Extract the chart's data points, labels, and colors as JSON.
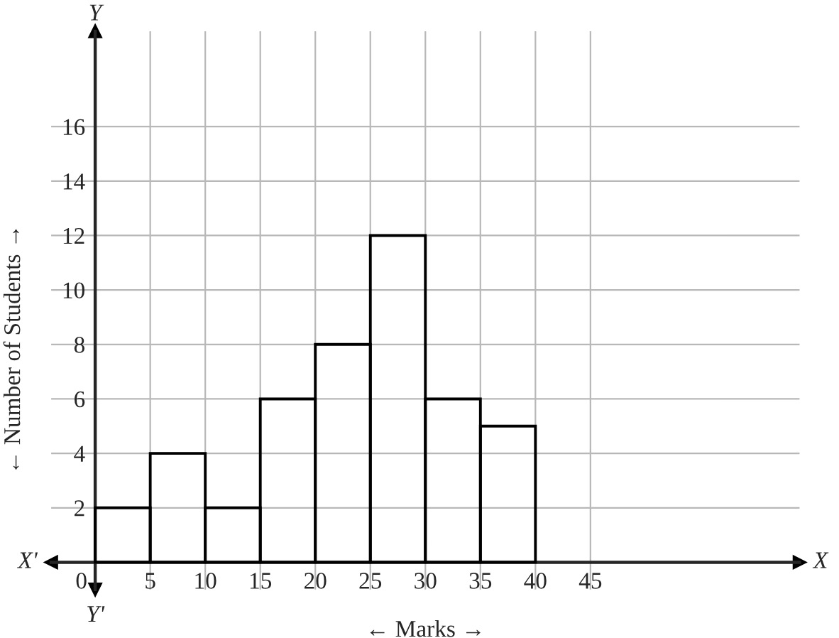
{
  "chart_data": {
    "type": "histogram",
    "xlabel": "← Marks →",
    "ylabel": "← Number of Students →",
    "bins": [
      0,
      5,
      10,
      15,
      20,
      25,
      30,
      35,
      40
    ],
    "values": [
      2,
      4,
      2,
      6,
      8,
      12,
      6,
      5
    ],
    "color": "#000000",
    "xlim": [
      -4,
      64
    ],
    "ylim": [
      -1,
      19.5
    ],
    "xticks": [
      0,
      5,
      10,
      15,
      20,
      25,
      30,
      35,
      40,
      45
    ],
    "yticks": [
      2,
      4,
      6,
      8,
      10,
      12,
      14,
      16
    ],
    "grid": true,
    "annotations": [
      "Y",
      "Y'",
      "X'",
      "X"
    ]
  }
}
